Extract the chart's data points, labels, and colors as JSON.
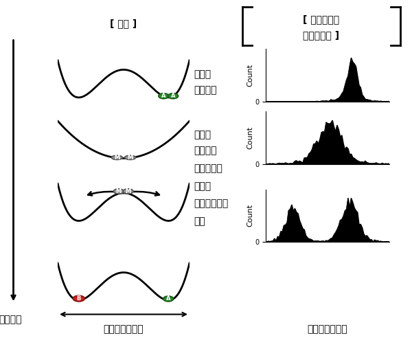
{
  "title_theory": "[ 理論 ]",
  "title_signal_line1": "[ 生きた細胞",
  "title_signal_line2": "からの信号 ]",
  "label_1_line1": "初期の",
  "label_1_line2": "基底状態",
  "label_2_line1": "遺伝子",
  "label_2_line2": "大量生産",
  "label_3_line1": "大量発現の",
  "label_3_line2": "解除と",
  "label_3_line3": "基底状態への",
  "label_3_line4": "復帰",
  "xlabel_left": "細胞の内部状態",
  "xlabel_right": "細胞の内部状態",
  "ylabel_hist": "Count",
  "time_label": "時間経過",
  "background_color": "#ffffff",
  "curve_color": "#000000",
  "cell_green_color": "#2a8a2a",
  "cell_red_color": "#cc2222",
  "cell_gray_color": "#999999",
  "cell_gray_edge": "#555555",
  "cell_green_edge": "#1a5c1a",
  "cell_red_edge": "#881111"
}
